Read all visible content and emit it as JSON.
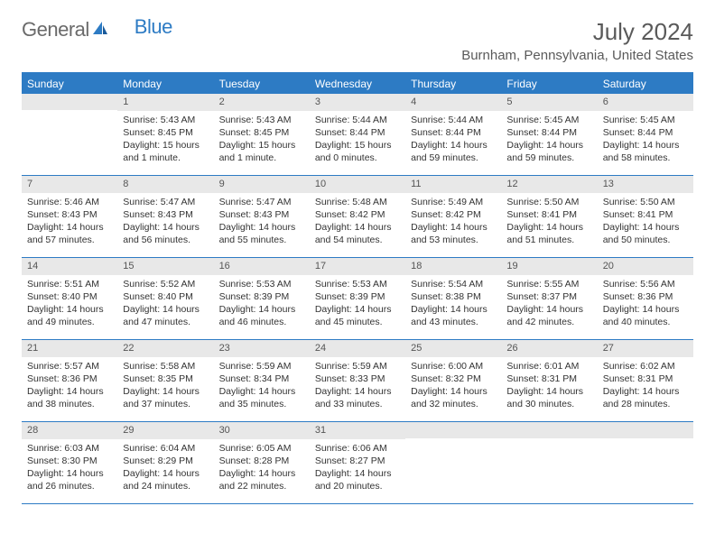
{
  "logo": {
    "general": "General",
    "blue": "Blue"
  },
  "title": "July 2024",
  "location": "Burnham, Pennsylvania, United States",
  "colors": {
    "accent": "#2d7bc4",
    "dayNumBg": "#e8e8e8",
    "text": "#333333",
    "headerText": "#5a5a5a"
  },
  "daysOfWeek": [
    "Sunday",
    "Monday",
    "Tuesday",
    "Wednesday",
    "Thursday",
    "Friday",
    "Saturday"
  ],
  "weeks": [
    [
      {
        "num": "",
        "sunrise": "",
        "sunset": "",
        "daylight": ""
      },
      {
        "num": "1",
        "sunrise": "Sunrise: 5:43 AM",
        "sunset": "Sunset: 8:45 PM",
        "daylight": "Daylight: 15 hours and 1 minute."
      },
      {
        "num": "2",
        "sunrise": "Sunrise: 5:43 AM",
        "sunset": "Sunset: 8:45 PM",
        "daylight": "Daylight: 15 hours and 1 minute."
      },
      {
        "num": "3",
        "sunrise": "Sunrise: 5:44 AM",
        "sunset": "Sunset: 8:44 PM",
        "daylight": "Daylight: 15 hours and 0 minutes."
      },
      {
        "num": "4",
        "sunrise": "Sunrise: 5:44 AM",
        "sunset": "Sunset: 8:44 PM",
        "daylight": "Daylight: 14 hours and 59 minutes."
      },
      {
        "num": "5",
        "sunrise": "Sunrise: 5:45 AM",
        "sunset": "Sunset: 8:44 PM",
        "daylight": "Daylight: 14 hours and 59 minutes."
      },
      {
        "num": "6",
        "sunrise": "Sunrise: 5:45 AM",
        "sunset": "Sunset: 8:44 PM",
        "daylight": "Daylight: 14 hours and 58 minutes."
      }
    ],
    [
      {
        "num": "7",
        "sunrise": "Sunrise: 5:46 AM",
        "sunset": "Sunset: 8:43 PM",
        "daylight": "Daylight: 14 hours and 57 minutes."
      },
      {
        "num": "8",
        "sunrise": "Sunrise: 5:47 AM",
        "sunset": "Sunset: 8:43 PM",
        "daylight": "Daylight: 14 hours and 56 minutes."
      },
      {
        "num": "9",
        "sunrise": "Sunrise: 5:47 AM",
        "sunset": "Sunset: 8:43 PM",
        "daylight": "Daylight: 14 hours and 55 minutes."
      },
      {
        "num": "10",
        "sunrise": "Sunrise: 5:48 AM",
        "sunset": "Sunset: 8:42 PM",
        "daylight": "Daylight: 14 hours and 54 minutes."
      },
      {
        "num": "11",
        "sunrise": "Sunrise: 5:49 AM",
        "sunset": "Sunset: 8:42 PM",
        "daylight": "Daylight: 14 hours and 53 minutes."
      },
      {
        "num": "12",
        "sunrise": "Sunrise: 5:50 AM",
        "sunset": "Sunset: 8:41 PM",
        "daylight": "Daylight: 14 hours and 51 minutes."
      },
      {
        "num": "13",
        "sunrise": "Sunrise: 5:50 AM",
        "sunset": "Sunset: 8:41 PM",
        "daylight": "Daylight: 14 hours and 50 minutes."
      }
    ],
    [
      {
        "num": "14",
        "sunrise": "Sunrise: 5:51 AM",
        "sunset": "Sunset: 8:40 PM",
        "daylight": "Daylight: 14 hours and 49 minutes."
      },
      {
        "num": "15",
        "sunrise": "Sunrise: 5:52 AM",
        "sunset": "Sunset: 8:40 PM",
        "daylight": "Daylight: 14 hours and 47 minutes."
      },
      {
        "num": "16",
        "sunrise": "Sunrise: 5:53 AM",
        "sunset": "Sunset: 8:39 PM",
        "daylight": "Daylight: 14 hours and 46 minutes."
      },
      {
        "num": "17",
        "sunrise": "Sunrise: 5:53 AM",
        "sunset": "Sunset: 8:39 PM",
        "daylight": "Daylight: 14 hours and 45 minutes."
      },
      {
        "num": "18",
        "sunrise": "Sunrise: 5:54 AM",
        "sunset": "Sunset: 8:38 PM",
        "daylight": "Daylight: 14 hours and 43 minutes."
      },
      {
        "num": "19",
        "sunrise": "Sunrise: 5:55 AM",
        "sunset": "Sunset: 8:37 PM",
        "daylight": "Daylight: 14 hours and 42 minutes."
      },
      {
        "num": "20",
        "sunrise": "Sunrise: 5:56 AM",
        "sunset": "Sunset: 8:36 PM",
        "daylight": "Daylight: 14 hours and 40 minutes."
      }
    ],
    [
      {
        "num": "21",
        "sunrise": "Sunrise: 5:57 AM",
        "sunset": "Sunset: 8:36 PM",
        "daylight": "Daylight: 14 hours and 38 minutes."
      },
      {
        "num": "22",
        "sunrise": "Sunrise: 5:58 AM",
        "sunset": "Sunset: 8:35 PM",
        "daylight": "Daylight: 14 hours and 37 minutes."
      },
      {
        "num": "23",
        "sunrise": "Sunrise: 5:59 AM",
        "sunset": "Sunset: 8:34 PM",
        "daylight": "Daylight: 14 hours and 35 minutes."
      },
      {
        "num": "24",
        "sunrise": "Sunrise: 5:59 AM",
        "sunset": "Sunset: 8:33 PM",
        "daylight": "Daylight: 14 hours and 33 minutes."
      },
      {
        "num": "25",
        "sunrise": "Sunrise: 6:00 AM",
        "sunset": "Sunset: 8:32 PM",
        "daylight": "Daylight: 14 hours and 32 minutes."
      },
      {
        "num": "26",
        "sunrise": "Sunrise: 6:01 AM",
        "sunset": "Sunset: 8:31 PM",
        "daylight": "Daylight: 14 hours and 30 minutes."
      },
      {
        "num": "27",
        "sunrise": "Sunrise: 6:02 AM",
        "sunset": "Sunset: 8:31 PM",
        "daylight": "Daylight: 14 hours and 28 minutes."
      }
    ],
    [
      {
        "num": "28",
        "sunrise": "Sunrise: 6:03 AM",
        "sunset": "Sunset: 8:30 PM",
        "daylight": "Daylight: 14 hours and 26 minutes."
      },
      {
        "num": "29",
        "sunrise": "Sunrise: 6:04 AM",
        "sunset": "Sunset: 8:29 PM",
        "daylight": "Daylight: 14 hours and 24 minutes."
      },
      {
        "num": "30",
        "sunrise": "Sunrise: 6:05 AM",
        "sunset": "Sunset: 8:28 PM",
        "daylight": "Daylight: 14 hours and 22 minutes."
      },
      {
        "num": "31",
        "sunrise": "Sunrise: 6:06 AM",
        "sunset": "Sunset: 8:27 PM",
        "daylight": "Daylight: 14 hours and 20 minutes."
      },
      {
        "num": "",
        "sunrise": "",
        "sunset": "",
        "daylight": ""
      },
      {
        "num": "",
        "sunrise": "",
        "sunset": "",
        "daylight": ""
      },
      {
        "num": "",
        "sunrise": "",
        "sunset": "",
        "daylight": ""
      }
    ]
  ]
}
